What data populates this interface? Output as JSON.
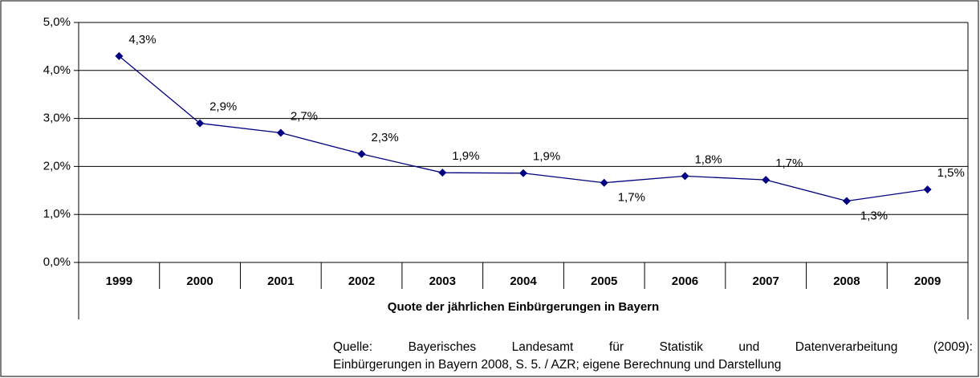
{
  "chart_data": {
    "type": "line",
    "x_label": "Quote der jährlichen Einbürgerungen in Bayern",
    "categories": [
      "1999",
      "2000",
      "2001",
      "2002",
      "2003",
      "2004",
      "2005",
      "2006",
      "2007",
      "2008",
      "2009"
    ],
    "values": [
      4.3,
      2.9,
      2.7,
      2.26,
      1.87,
      1.86,
      1.66,
      1.8,
      1.72,
      1.28,
      1.52
    ],
    "value_labels": [
      "4,3%",
      "2,9%",
      "2,7%",
      "2,3%",
      "1,9%",
      "1,9%",
      "1,7%",
      "1,8%",
      "1,7%",
      "1,3%",
      "1,5%"
    ],
    "color": "#000080",
    "ylim": [
      0,
      5
    ],
    "yticks": [
      {
        "value": 0,
        "label": "0,0%"
      },
      {
        "value": 1,
        "label": "1,0%"
      },
      {
        "value": 2,
        "label": "2,0%"
      },
      {
        "value": 3,
        "label": "3,0%"
      },
      {
        "value": 4,
        "label": "4,0%"
      },
      {
        "value": 5,
        "label": "5,0%"
      }
    ],
    "grid": true,
    "source": [
      "Quelle: Bayerisches Landesamt für Statistik und Datenverarbeitung (2009):",
      "Einbürgerungen in Bayern 2008, S. 5. / AZR; eigene Berechnung und Darstellung"
    ]
  }
}
